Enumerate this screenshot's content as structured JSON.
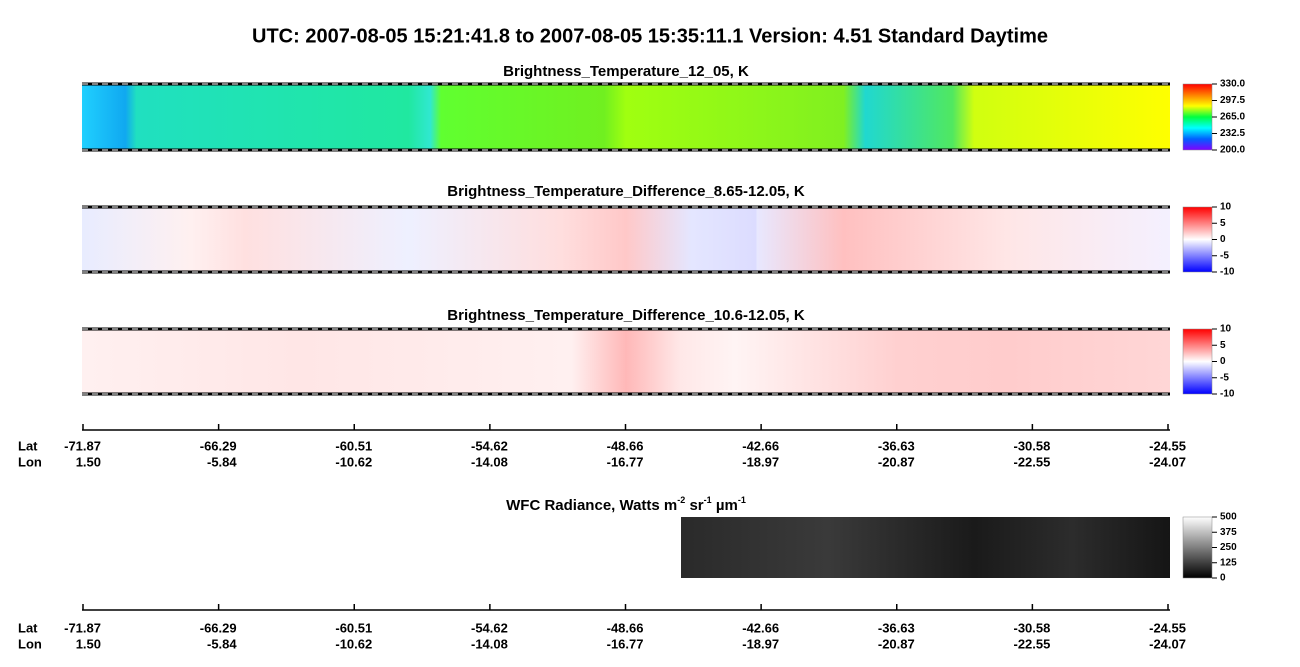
{
  "title": "UTC:  2007-08-05   15:21:41.8  to  2007-08-05   15:35:11.1    Version: 4.51  Standard Daytime",
  "panels": [
    {
      "title": "Brightness_Temperature_12_05, K",
      "colorbar": {
        "colors": [
          "#8000ff",
          "#0060ff",
          "#00ffff",
          "#00ff40",
          "#ffff00",
          "#ff8000",
          "#ff0000"
        ],
        "ticks": [
          {
            "value": 330,
            "label": "330.0"
          },
          {
            "value": 297.5,
            "label": "297.5"
          },
          {
            "value": 265,
            "label": "265.0"
          },
          {
            "value": 232.5,
            "label": "232.5"
          },
          {
            "value": 200,
            "label": "200.0"
          }
        ]
      }
    },
    {
      "title": "Brightness_Temperature_Difference_8.65-12.05, K",
      "colorbar": {
        "colors": [
          "#0000ff",
          "#ffffff",
          "#ff0000"
        ],
        "ticks": [
          10,
          5,
          0,
          -5,
          -10
        ]
      }
    },
    {
      "title": "Brightness_Temperature_Difference_10.6-12.05, K",
      "colorbar": {
        "colors": [
          "#0000ff",
          "#ffffff",
          "#ff0000"
        ],
        "ticks": [
          10,
          5,
          0,
          -5,
          -10
        ]
      }
    },
    {
      "title_parts": [
        "WFC Radiance, Watts m",
        "-2",
        " sr",
        "-1",
        " µm",
        "-1"
      ],
      "colorbar": {
        "colors": [
          "#000000",
          "#ffffff"
        ],
        "ticks": [
          500,
          375,
          250,
          125,
          0
        ]
      }
    }
  ],
  "axes": [
    {
      "lat_label": "Lat",
      "lon_label": "Lon",
      "lat": [
        "-71.87",
        "-66.29",
        "-60.51",
        "-54.62",
        "-48.66",
        "-42.66",
        "-36.63",
        "-30.58",
        "-24.55"
      ],
      "lon": [
        "1.50",
        "-5.84",
        "-10.62",
        "-14.08",
        "-16.77",
        "-18.97",
        "-20.87",
        "-22.55",
        "-24.07"
      ]
    },
    {
      "lat_label": "Lat",
      "lon_label": "Lon",
      "lat": [
        "-71.87",
        "-66.29",
        "-60.51",
        "-54.62",
        "-48.66",
        "-42.66",
        "-36.63",
        "-30.58",
        "-24.55"
      ],
      "lon": [
        "1.50",
        "-5.84",
        "-10.62",
        "-14.08",
        "-16.77",
        "-18.97",
        "-20.87",
        "-22.55",
        "-24.07"
      ]
    }
  ]
}
